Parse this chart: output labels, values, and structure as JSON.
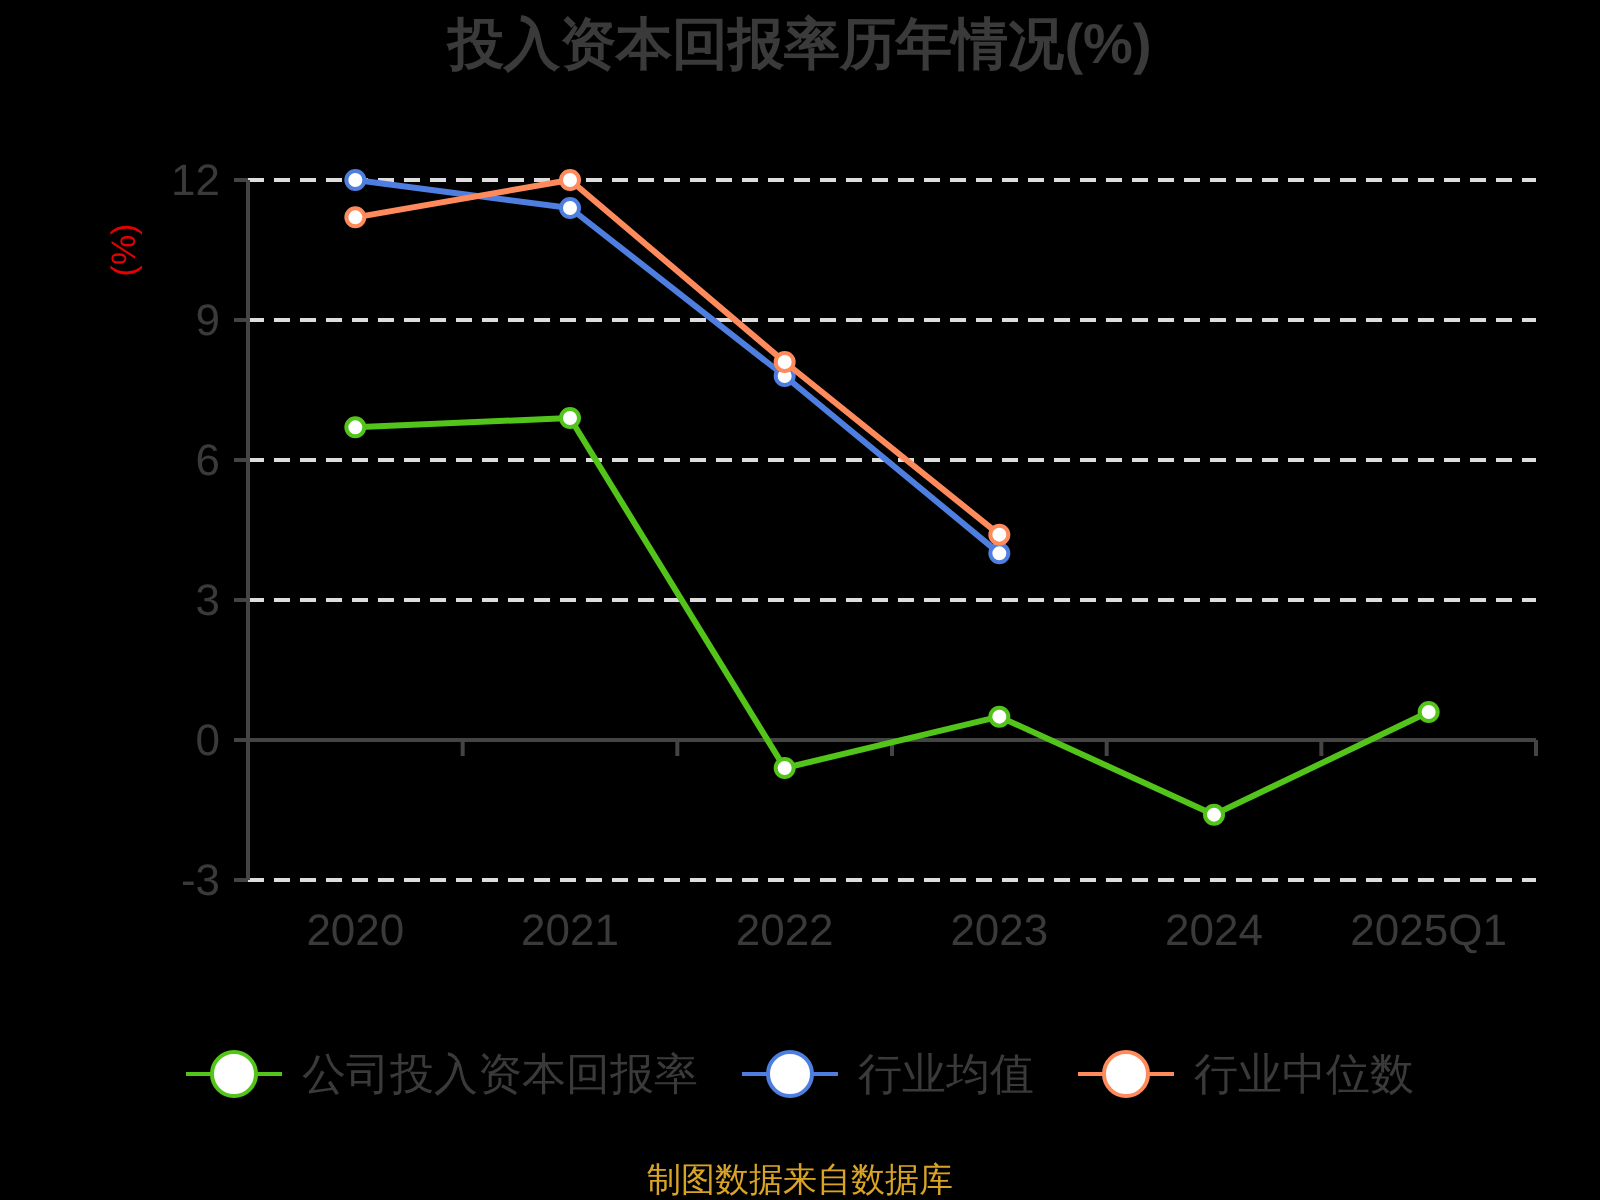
{
  "chart_data": {
    "type": "line",
    "title": "投入资本回报率历年情况(%)",
    "ylabel": "(%)",
    "categories": [
      "2020",
      "2021",
      "2022",
      "2023",
      "2024",
      "2025Q1"
    ],
    "series": [
      {
        "name": "公司投入资本回报率",
        "color": "#52c41a",
        "values": [
          6.7,
          6.9,
          -0.6,
          0.5,
          -1.6,
          0.6
        ]
      },
      {
        "name": "行业均值",
        "color": "#4e7fe0",
        "values": [
          12.0,
          11.4,
          7.8,
          4.0,
          null,
          null
        ]
      },
      {
        "name": "行业中位数",
        "color": "#ff8a5c",
        "values": [
          11.2,
          12.0,
          8.1,
          4.4,
          null,
          null
        ]
      }
    ],
    "ylim": [
      -3,
      12
    ],
    "yticks": [
      -3,
      0,
      3,
      6,
      9,
      12
    ],
    "grid": "y",
    "legend": "bottom",
    "marker": "circle",
    "line_style": "solid",
    "annotations": [
      "制图数据来自数据库"
    ]
  }
}
